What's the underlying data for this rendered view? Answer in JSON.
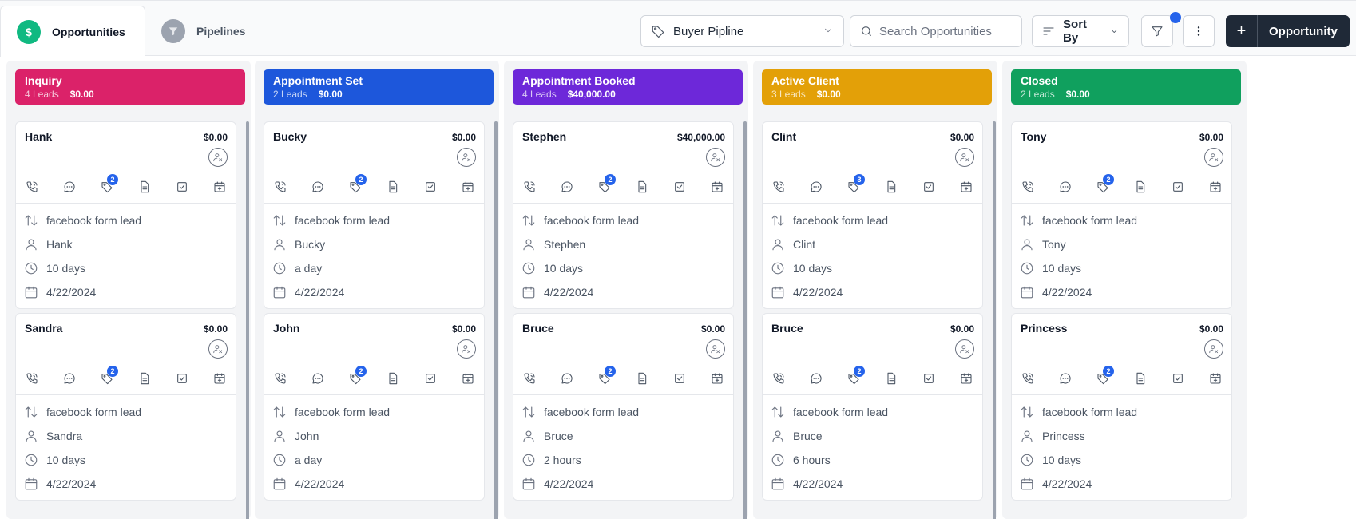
{
  "tabs": [
    {
      "label": "Opportunities",
      "icon": "dollar-icon",
      "active": true
    },
    {
      "label": "Pipelines",
      "icon": "filter-funnel-icon",
      "active": false
    }
  ],
  "toolbar": {
    "pipeline_select": "Buyer Pipline",
    "search_placeholder": "Search Opportunities",
    "sort_label": "Sort By",
    "add_label": "Opportunity"
  },
  "colors": {
    "accent": "#2563eb",
    "success": "#10b981"
  },
  "columns": [
    {
      "title": "Inquiry",
      "leads": "4 Leads",
      "amount": "$0.00",
      "color": "#db2269",
      "cards": [
        {
          "name": "Hank",
          "amount": "$0.00",
          "badge": "2",
          "source": "facebook form lead",
          "contact": "Hank",
          "age": "10 days",
          "date": "4/22/2024"
        },
        {
          "name": "Sandra",
          "amount": "$0.00",
          "badge": "2",
          "source": "facebook form lead",
          "contact": "Sandra",
          "age": "10 days",
          "date": "4/22/2024"
        }
      ]
    },
    {
      "title": "Appointment Set",
      "leads": "2 Leads",
      "amount": "$0.00",
      "color": "#1d57db",
      "cards": [
        {
          "name": "Bucky",
          "amount": "$0.00",
          "badge": "2",
          "source": "facebook form lead",
          "contact": "Bucky",
          "age": "a day",
          "date": "4/22/2024"
        },
        {
          "name": "John",
          "amount": "$0.00",
          "badge": "2",
          "source": "facebook form lead",
          "contact": "John",
          "age": "a day",
          "date": "4/22/2024"
        }
      ]
    },
    {
      "title": "Appointment Booked",
      "leads": "4 Leads",
      "amount": "$40,000.00",
      "color": "#6d28d9",
      "cards": [
        {
          "name": "Stephen",
          "amount": "$40,000.00",
          "badge": "2",
          "source": "facebook form lead",
          "contact": "Stephen",
          "age": "10 days",
          "date": "4/22/2024"
        },
        {
          "name": "Bruce",
          "amount": "$0.00",
          "badge": "2",
          "source": "facebook form lead",
          "contact": "Bruce",
          "age": "2 hours",
          "date": "4/22/2024"
        }
      ]
    },
    {
      "title": "Active Client",
      "leads": "3 Leads",
      "amount": "$0.00",
      "color": "#e3a008",
      "cards": [
        {
          "name": "Clint",
          "amount": "$0.00",
          "badge": "3",
          "source": "facebook form lead",
          "contact": "Clint",
          "age": "10 days",
          "date": "4/22/2024"
        },
        {
          "name": "Bruce",
          "amount": "$0.00",
          "badge": "2",
          "source": "facebook form lead",
          "contact": "Bruce",
          "age": "6 hours",
          "date": "4/22/2024"
        }
      ]
    },
    {
      "title": "Closed",
      "leads": "2 Leads",
      "amount": "$0.00",
      "color": "#10a05e",
      "cards": [
        {
          "name": "Tony",
          "amount": "$0.00",
          "badge": "2",
          "source": "facebook form lead",
          "contact": "Tony",
          "age": "10 days",
          "date": "4/22/2024"
        },
        {
          "name": "Princess",
          "amount": "$0.00",
          "badge": "2",
          "source": "facebook form lead",
          "contact": "Princess",
          "age": "10 days",
          "date": "4/22/2024"
        }
      ]
    }
  ]
}
